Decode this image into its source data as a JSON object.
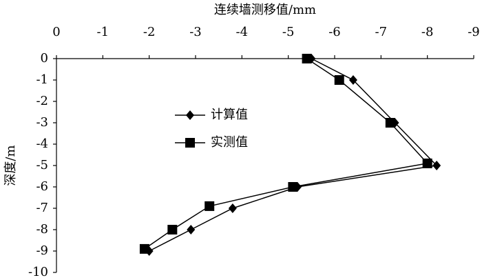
{
  "chart_data": {
    "type": "line",
    "x_label": "连续墙测移值/mm",
    "y_label": "深度/m",
    "xlim": [
      0,
      -9
    ],
    "xticks": [
      0,
      -1,
      -2,
      -3,
      -4,
      -5,
      -6,
      -7,
      -8,
      -9
    ],
    "ylim": [
      0,
      -10
    ],
    "yticks": [
      0,
      -1,
      -2,
      -3,
      -4,
      -5,
      -6,
      -7,
      -8,
      -9,
      -10
    ],
    "series": [
      {
        "name": "计算值",
        "color": "#000000",
        "marker": "diamond",
        "x": [
          -5.5,
          -6.4,
          -7.3,
          -8.2,
          -5.2,
          -3.8,
          -2.9,
          -2.0
        ],
        "values": [
          0,
          -1,
          -3,
          -5,
          -6,
          -7,
          -8,
          -9
        ]
      },
      {
        "name": "实测值",
        "color": "#000000",
        "marker": "square",
        "x": [
          -5.4,
          -6.1,
          -7.2,
          -8.0,
          -5.1,
          -3.3,
          -2.5,
          -1.9
        ],
        "values": [
          0,
          -1,
          -3,
          -4.9,
          -6,
          -6.9,
          -8,
          -8.9
        ]
      }
    ]
  }
}
